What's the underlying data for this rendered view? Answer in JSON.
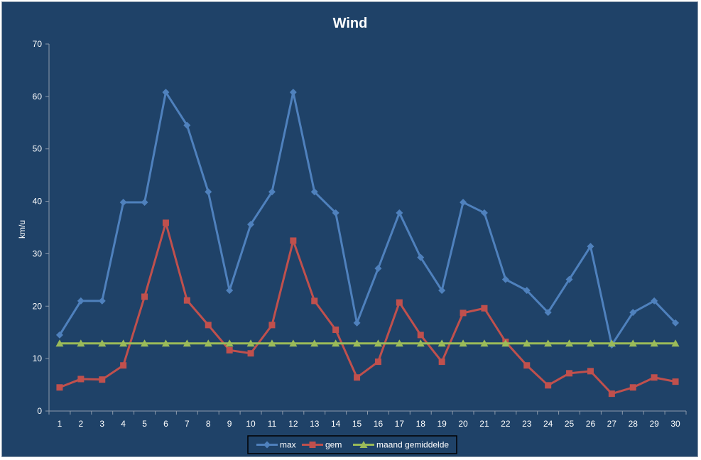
{
  "chart_data": {
    "type": "line",
    "title": "Wind",
    "xlabel": "",
    "ylabel": "km/u",
    "ylim": [
      0,
      70
    ],
    "y_ticks": [
      0,
      10,
      20,
      30,
      40,
      50,
      60,
      70
    ],
    "grid": false,
    "legend_position": "bottom",
    "categories": [
      "1",
      "2",
      "3",
      "4",
      "5",
      "6",
      "7",
      "8",
      "9",
      "10",
      "11",
      "12",
      "13",
      "14",
      "15",
      "16",
      "17",
      "18",
      "19",
      "20",
      "21",
      "22",
      "23",
      "24",
      "25",
      "26",
      "27",
      "28",
      "29",
      "30"
    ],
    "series": [
      {
        "name": "max",
        "color": "#4f81bd",
        "marker": "diamond",
        "values": [
          14.5,
          21,
          21,
          39.8,
          39.8,
          60.8,
          54.5,
          41.8,
          23,
          35.6,
          41.8,
          60.8,
          41.8,
          37.8,
          16.8,
          27.2,
          37.8,
          29.3,
          23,
          39.8,
          37.8,
          25.1,
          23,
          18.8,
          25.1,
          31.4,
          12.6,
          18.8,
          21,
          16.8
        ]
      },
      {
        "name": "gem",
        "color": "#c0504d",
        "marker": "square",
        "values": [
          4.5,
          6.1,
          6,
          8.7,
          21.8,
          35.9,
          21.1,
          16.4,
          11.6,
          11,
          16.4,
          32.5,
          21,
          15.5,
          6.4,
          9.4,
          20.7,
          14.5,
          9.4,
          18.7,
          19.6,
          13.2,
          8.7,
          4.9,
          7.2,
          7.6,
          3.3,
          4.5,
          6.4,
          5.6
        ]
      },
      {
        "name": "maand gemiddelde",
        "color": "#9bbb59",
        "marker": "triangle",
        "values": [
          12.9,
          12.9,
          12.9,
          12.9,
          12.9,
          12.9,
          12.9,
          12.9,
          12.9,
          12.9,
          12.9,
          12.9,
          12.9,
          12.9,
          12.9,
          12.9,
          12.9,
          12.9,
          12.9,
          12.9,
          12.9,
          12.9,
          12.9,
          12.9,
          12.9,
          12.9,
          12.9,
          12.9,
          12.9,
          12.9
        ]
      }
    ]
  }
}
